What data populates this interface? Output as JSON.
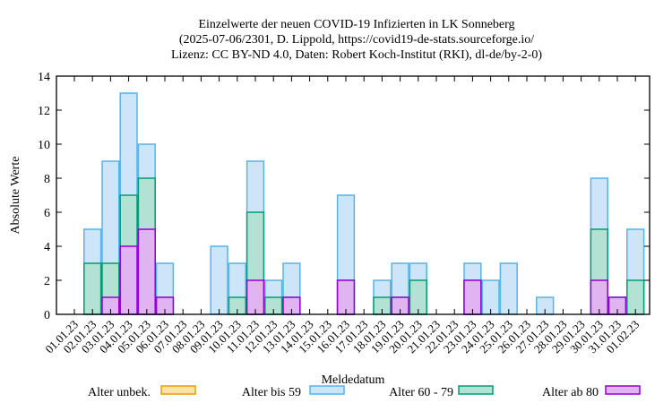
{
  "chart_data": {
    "type": "bar",
    "title": [
      "Einzelwerte der neuen COVID-19 Infizierten in LK Sonneberg",
      "(2025-07-06/2301, D. Lippold, https://covid19-de-stats.sourceforge.io/",
      "Lizenz: CC BY-ND 4.0, Daten: Robert Koch-Institut (RKI), dl-de/by-2-0)"
    ],
    "xlabel": "Meldedatum",
    "ylabel": "Absolute Werte",
    "ylim": [
      0,
      14
    ],
    "yticks": [
      "0",
      "2",
      "4",
      "6",
      "8",
      "10",
      "12",
      "14"
    ],
    "categories": [
      "01.01.23",
      "02.01.23",
      "03.01.23",
      "04.01.23",
      "05.01.23",
      "06.01.23",
      "07.01.23",
      "08.01.23",
      "09.01.23",
      "10.01.23",
      "11.01.23",
      "12.01.23",
      "13.01.23",
      "14.01.23",
      "15.01.23",
      "16.01.23",
      "17.01.23",
      "18.01.23",
      "19.01.23",
      "20.01.23",
      "21.01.23",
      "22.01.23",
      "23.01.23",
      "24.01.23",
      "25.01.23",
      "26.01.23",
      "27.01.23",
      "28.01.23",
      "29.01.23",
      "30.01.23",
      "31.01.23",
      "01.02.23"
    ],
    "stacking": "stacked",
    "legend_position": "bottom",
    "series": [
      {
        "name": "Alter ab 80",
        "fill": "#e0b4f0",
        "stroke": "#9400d3",
        "values": [
          0,
          0,
          1,
          4,
          5,
          1,
          0,
          0,
          0,
          0,
          2,
          0,
          1,
          0,
          0,
          2,
          0,
          0,
          1,
          0,
          0,
          0,
          2,
          0,
          0,
          0,
          0,
          0,
          0,
          2,
          1,
          0
        ]
      },
      {
        "name": "Alter 60 - 79",
        "fill": "#b3e1d4",
        "stroke": "#009e73",
        "values": [
          0,
          3,
          2,
          3,
          3,
          0,
          0,
          0,
          0,
          1,
          4,
          1,
          0,
          0,
          0,
          0,
          0,
          1,
          0,
          2,
          0,
          0,
          0,
          0,
          0,
          0,
          0,
          0,
          0,
          3,
          0,
          2
        ]
      },
      {
        "name": "Alter bis 59",
        "fill": "#cce6f7",
        "stroke": "#56b4e9",
        "values": [
          0,
          2,
          6,
          6,
          2,
          2,
          0,
          0,
          4,
          2,
          3,
          1,
          2,
          0,
          0,
          5,
          0,
          1,
          2,
          1,
          0,
          0,
          1,
          2,
          3,
          0,
          1,
          0,
          0,
          3,
          0,
          3
        ]
      },
      {
        "name": "Alter unbek.",
        "fill": "#fae3a8",
        "stroke": "#e69f00",
        "values": [
          0,
          0,
          0,
          0,
          0,
          0,
          0,
          0,
          0,
          0,
          0,
          0,
          0,
          0,
          0,
          0,
          0,
          0,
          0,
          0,
          0,
          0,
          0,
          0,
          0,
          0,
          0,
          0,
          0,
          0,
          0,
          0
        ]
      }
    ],
    "legend_order": [
      "Alter unbek.",
      "Alter bis 59",
      "Alter 60 - 79",
      "Alter ab 80"
    ]
  }
}
